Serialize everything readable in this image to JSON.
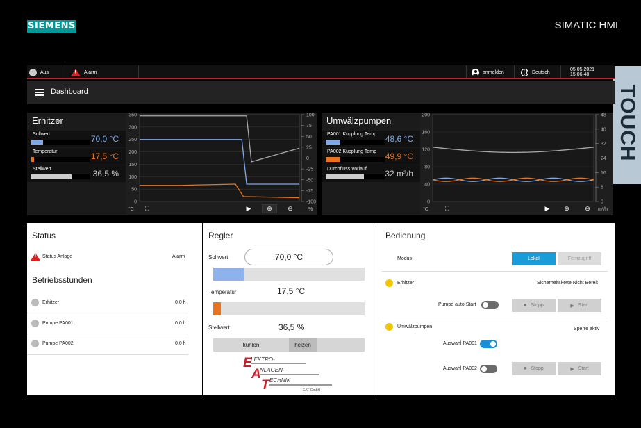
{
  "brand": {
    "logo_text": "SIEMENS",
    "product": "SIMATIC HMI",
    "side_tab": "TOUCH"
  },
  "topbar": {
    "status": "Aus",
    "alarm": "Alarm",
    "login": "anmelden",
    "language": "Deutsch",
    "datetime": "05.05.2021 15:06:48"
  },
  "nav": {
    "title": "Dashboard"
  },
  "erhitzer": {
    "title": "Erhitzer",
    "rows": [
      {
        "label": "Sollwert",
        "value": "70,0 °C",
        "color": "#7fa9e8",
        "fill": 0.2
      },
      {
        "label": "Temperatur",
        "value": "17,5 °C",
        "color": "#e8741f",
        "fill": 0.05
      },
      {
        "label": "Stellwert",
        "value": "36,5 %",
        "color": "#cccccc",
        "fill": 0.68
      }
    ]
  },
  "umwaelzpumpen": {
    "title": "Umwälzpumpen",
    "rows": [
      {
        "label": "PA001 Kupplung Temp",
        "value": "48,6 °C",
        "color": "#7fa9e8",
        "fill": 0.25
      },
      {
        "label": "PA002 Kupplung Temp",
        "value": "49,9 °C",
        "color": "#e8741f",
        "fill": 0.25
      },
      {
        "label": "Durchfluss Vorlauf",
        "value": "32 m³/h",
        "color": "#cccccc",
        "fill": 0.65
      }
    ]
  },
  "chart_data": [
    {
      "type": "line",
      "y_left_ticks": [
        "350",
        "300",
        "250",
        "200",
        "150",
        "100",
        "50",
        "0"
      ],
      "y_right_ticks": [
        "100",
        "75",
        "50",
        "25",
        "0",
        "-25",
        "-50",
        "-75",
        "-100"
      ],
      "y_left_unit": "°C",
      "y_right_unit": "%",
      "ylim_left": [
        0,
        350
      ],
      "ylim_right": [
        -100,
        100
      ],
      "series": [
        {
          "color": "#aaaaaa",
          "axis": "left",
          "x": [
            0,
            0.67,
            0.7,
            1.0
          ],
          "y": [
            345,
            345,
            160,
            215
          ]
        },
        {
          "color": "#7fa9e8",
          "axis": "left",
          "x": [
            0,
            0.64,
            0.67,
            1.0
          ],
          "y": [
            250,
            250,
            70,
            70
          ]
        },
        {
          "color": "#e8741f",
          "axis": "left",
          "x": [
            0,
            0.25,
            0.6,
            0.65,
            1.0
          ],
          "y": [
            65,
            65,
            70,
            20,
            15
          ]
        }
      ]
    },
    {
      "type": "line",
      "y_left_ticks": [
        "200",
        "160",
        "120",
        "80",
        "40",
        "0"
      ],
      "y_right_ticks": [
        "48",
        "40",
        "32",
        "24",
        "16",
        "8",
        "0"
      ],
      "y_left_unit": "°C",
      "y_right_unit": "m³/h",
      "ylim_left": [
        0,
        200
      ],
      "ylim_right": [
        0,
        48
      ],
      "series": [
        {
          "color": "#aaaaaa",
          "axis": "left",
          "shape": "wave-low",
          "base": 125,
          "amp": 12
        },
        {
          "color": "#7fa9e8",
          "axis": "left",
          "shape": "sine",
          "base": 50,
          "amp": 4,
          "phase": 0
        },
        {
          "color": "#e8741f",
          "axis": "left",
          "shape": "sine",
          "base": 50,
          "amp": 4,
          "phase": 3.14
        }
      ]
    }
  ],
  "status_panel": {
    "title": "Status",
    "anlage_label": "Status Anlage",
    "anlage_value": "Alarm",
    "betrieb_title": "Betriebsstunden",
    "items": [
      {
        "label": "Erhitzer",
        "value": "0,0 h"
      },
      {
        "label": "Pumpe PA001",
        "value": "0,0 h"
      },
      {
        "label": "Pumpe PA002",
        "value": "0,0 h"
      }
    ]
  },
  "regler": {
    "title": "Regler",
    "sollwert_label": "Sollwert",
    "sollwert_value": "70,0 °C",
    "sollwert_fill": 0.2,
    "temperatur_label": "Temperatur",
    "temperatur_value": "17,5 °C",
    "temperatur_fill": 0.05,
    "stellwert_label": "Stellwert",
    "stellwert_value": "36,5 %",
    "cool_label": "kühlen",
    "heat_label": "heizen",
    "logo_lines": [
      "LEKTRO-",
      "NLAGEN-",
      "ECHNIK"
    ],
    "logo_initials": [
      "E",
      "A",
      "T"
    ],
    "logo_sub": "EAT GmbH"
  },
  "bedienung": {
    "title": "Bedienung",
    "modus_label": "Modus",
    "lokal_label": "Lokal",
    "fern_label": "Fernzugriff",
    "erhitzer_label": "Erhitzer",
    "erhitzer_status": "Sicherheitskette Nicht Bereit",
    "pumpe_auto_label": "Pumpe auto Start",
    "stop_label": "Stopp",
    "start_label": "Start",
    "umw_label": "Umwälzpumpen",
    "umw_status": "Sperre aktiv",
    "pa001_label": "Auswahl PA001",
    "pa002_label": "Auswahl PA002"
  }
}
